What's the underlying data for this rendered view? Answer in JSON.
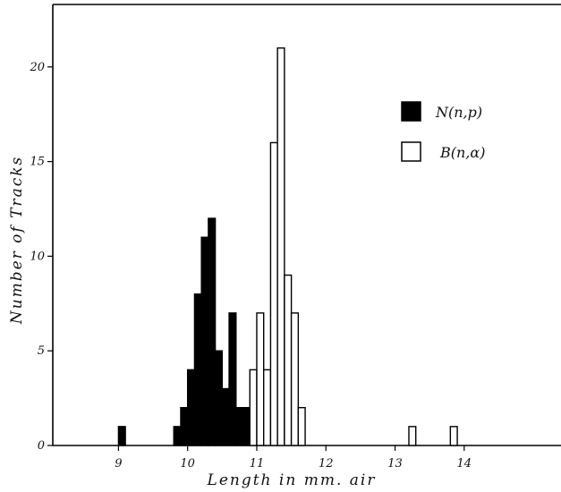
{
  "chart_data": {
    "type": "bar",
    "title": "",
    "xlabel": "Length in mm. air",
    "ylabel": "Number of Tracks",
    "xlim": [
      8.05,
      15.4
    ],
    "ylim": [
      0,
      23.3
    ],
    "x_ticks": [
      "9",
      "10",
      "11",
      "12",
      "13",
      "14"
    ],
    "y_ticks": [
      "0",
      "5",
      "10",
      "15",
      "20"
    ],
    "bin_width": 0.1,
    "grid": false,
    "legend_position": "top-right",
    "series": [
      {
        "name": "N(n,p)",
        "style": "filled",
        "color": "#000000",
        "bins": [
          {
            "x": 9.0,
            "count": 1
          },
          {
            "x": 9.8,
            "count": 1
          },
          {
            "x": 9.9,
            "count": 2
          },
          {
            "x": 10.0,
            "count": 4
          },
          {
            "x": 10.1,
            "count": 8
          },
          {
            "x": 10.2,
            "count": 11
          },
          {
            "x": 10.3,
            "count": 12
          },
          {
            "x": 10.4,
            "count": 5
          },
          {
            "x": 10.5,
            "count": 3
          },
          {
            "x": 10.6,
            "count": 7
          },
          {
            "x": 10.7,
            "count": 2
          },
          {
            "x": 10.8,
            "count": 2
          }
        ]
      },
      {
        "name": "B(n,α)",
        "style": "open",
        "color": "#000000",
        "bins": [
          {
            "x": 10.9,
            "count": 4
          },
          {
            "x": 11.0,
            "count": 7
          },
          {
            "x": 11.1,
            "count": 4
          },
          {
            "x": 11.2,
            "count": 16
          },
          {
            "x": 11.3,
            "count": 21
          },
          {
            "x": 11.4,
            "count": 9
          },
          {
            "x": 11.5,
            "count": 7
          },
          {
            "x": 11.6,
            "count": 2
          },
          {
            "x": 13.2,
            "count": 1
          },
          {
            "x": 13.8,
            "count": 1
          }
        ]
      }
    ]
  }
}
